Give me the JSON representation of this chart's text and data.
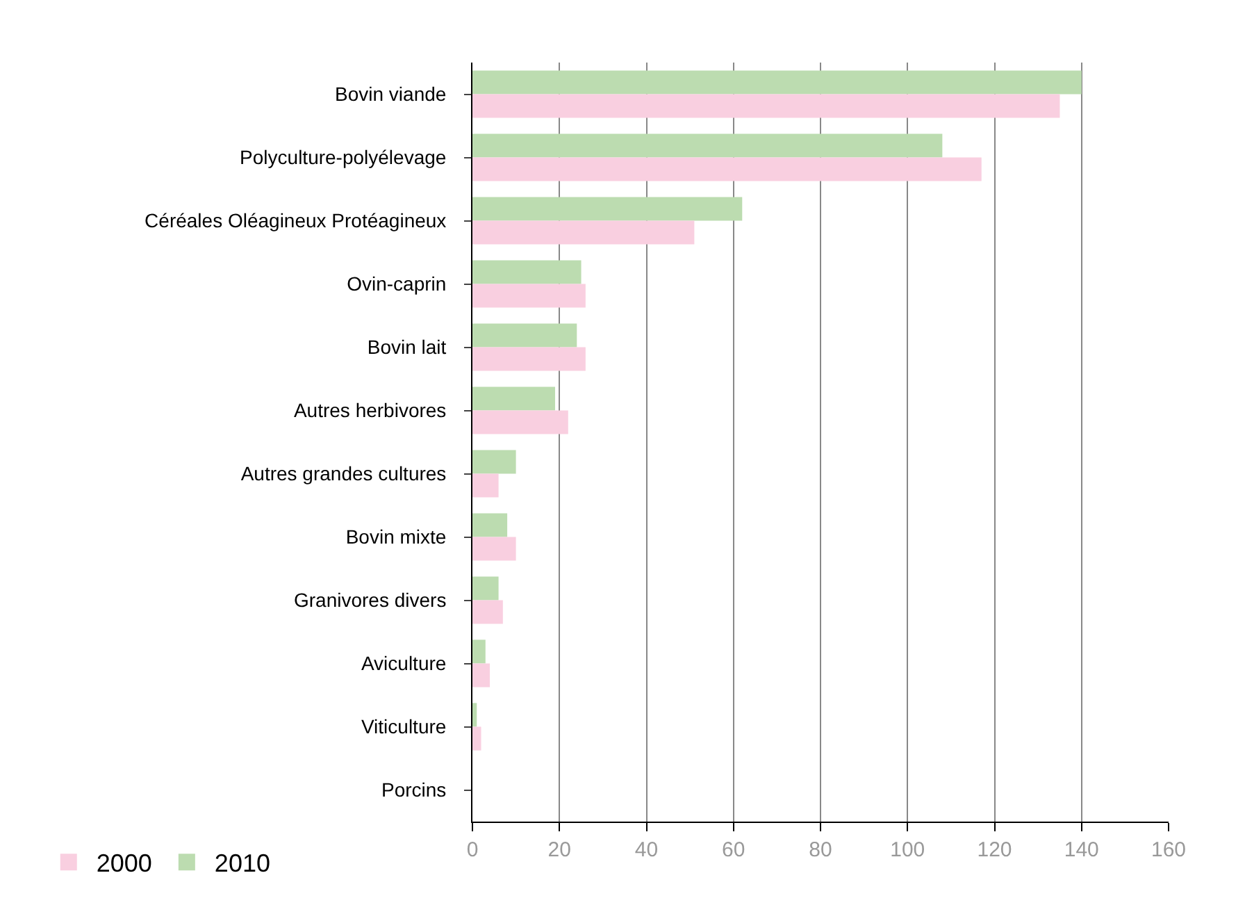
{
  "chart_data": {
    "type": "bar",
    "orientation": "horizontal",
    "categories": [
      "Bovin viande",
      "Polyculture-polyélevage",
      "Céréales Oléagineux Protéagineux",
      "Ovin-caprin",
      "Bovin lait",
      "Autres herbivores",
      "Autres grandes cultures",
      "Bovin mixte",
      "Granivores divers",
      "Aviculture",
      "Viticulture",
      "Porcins"
    ],
    "series": [
      {
        "name": "2000",
        "color": "#f9cfe0",
        "values": [
          135,
          117,
          51,
          26,
          26,
          22,
          6,
          10,
          7,
          4,
          2,
          0
        ]
      },
      {
        "name": "2010",
        "color": "#bcdcb0",
        "values": [
          140,
          108,
          62,
          25,
          24,
          19,
          10,
          8,
          6,
          3,
          1,
          0
        ]
      }
    ],
    "xlim": [
      0,
      160
    ],
    "xticks": [
      0,
      20,
      40,
      60,
      80,
      100,
      120,
      140,
      160
    ],
    "grid": "x",
    "legend": "bottom left"
  }
}
